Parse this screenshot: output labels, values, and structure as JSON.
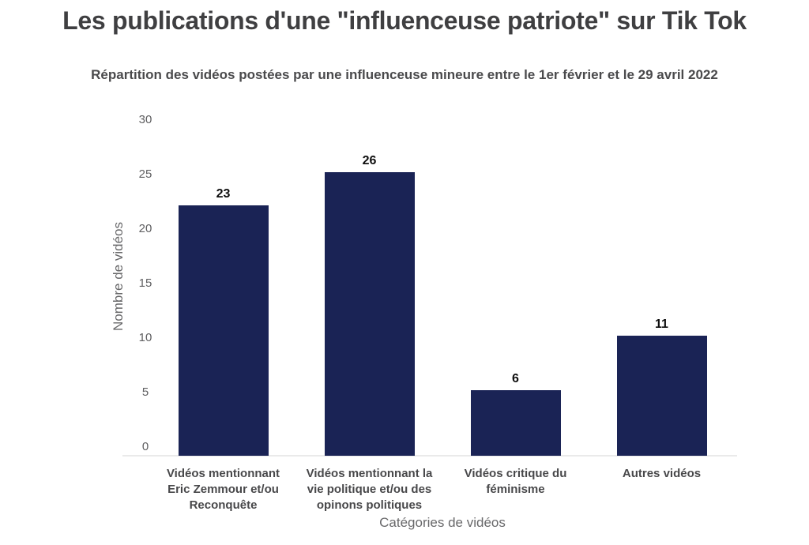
{
  "page": {
    "title": "Les publications d'une \"influenceuse patriote\" sur Tik Tok",
    "subtitle": "Répartition des vidéos postées par une influenceuse mineure entre le 1er février et le 29 avril 2022"
  },
  "chart_data": {
    "type": "bar",
    "title": "Les publications d'une \"influenceuse patriote\" sur Tik Tok",
    "subtitle": "Répartition des vidéos postées par une influenceuse mineure entre le 1er février et le 29 avril 2022",
    "categories": [
      "Vidéos mentionnant Eric Zemmour et/ou Reconquête",
      "Vidéos mentionnant la vie politique et/ou des opinons politiques",
      "Vidéos critique du féminisme",
      "Autres vidéos"
    ],
    "values": [
      23,
      26,
      6,
      11
    ],
    "data_labels": [
      23,
      26,
      6,
      11
    ],
    "xlabel": "Catégories de vidéos",
    "ylabel": "Nombre de vidéos",
    "ylim": [
      0,
      30
    ],
    "yticks": [
      0,
      5,
      10,
      15,
      20,
      25,
      30
    ],
    "grid": false,
    "legend": "none",
    "bar_color": "#1a2355"
  },
  "colors": {
    "background": "#ffffff",
    "title": "#3f3f41",
    "subtitle": "#4a4a4c",
    "tick_labels": "#5f5f61",
    "category_labels": "#48484a",
    "axis_titles": "#68686a",
    "value_labels": "#0e0e0e",
    "bar": "#1a2355",
    "axis_line": "#eaeaea"
  }
}
